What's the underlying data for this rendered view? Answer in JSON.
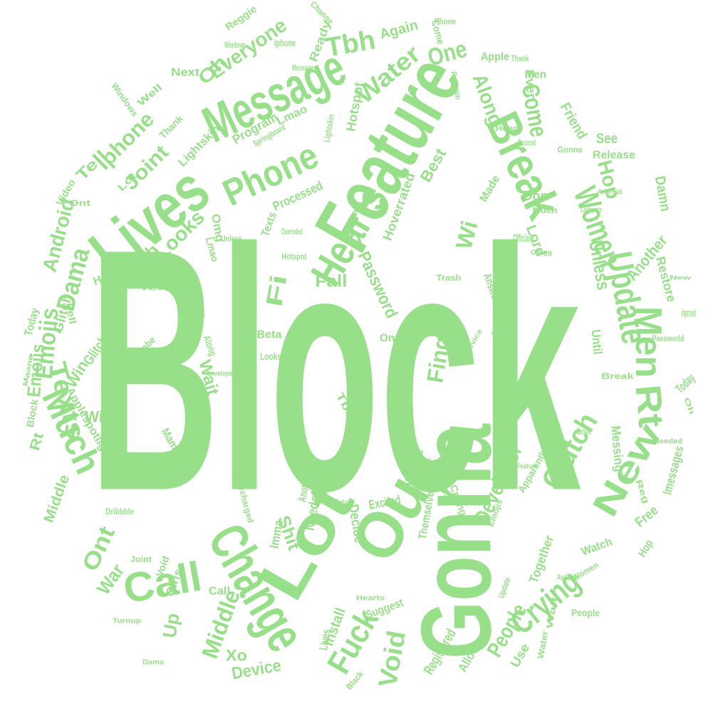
{
  "word_cloud": {
    "word_color": "#98df8a",
    "background_color": "#ffffff",
    "words": [
      "Block",
      "Gonna",
      "Feature",
      "Lot",
      "Out",
      "Lives",
      "Message",
      "Change",
      "Break",
      "Phone",
      "Hearts",
      "New",
      "Much",
      "Call",
      "Women",
      "Update",
      "Rt",
      "Men",
      "Crying",
      "Clutch",
      "Texts",
      "Emojis",
      "Dama",
      "Android",
      "Iphone",
      "Joint",
      "Tbh",
      "Water",
      "One",
      "Along",
      "Come",
      "Everyone",
      "Oh",
      "Hop",
      "Developer",
      "Fuck",
      "Void",
      "Finger",
      "People",
      "Looks",
      "Trash",
      "Brick",
      "Wi",
      "Fi",
      "Password",
      "Fall",
      "Middle",
      "Device",
      "Unless",
      "Another",
      "Restore",
      "Ont",
      "War",
      "Up",
      "Xo",
      "Wait",
      "Win",
      "Tell",
      "Glitch",
      "Next",
      "Well",
      "Windows",
      "Hotspot",
      "Program",
      "Lmao",
      "Lightskin",
      "Thank",
      "Processed",
      "Hoverrated",
      "Best",
      "Made",
      "Don",
      "Lord",
      "Damn",
      "Friend",
      "See",
      "Release",
      "Even",
      "Apple",
      "Again",
      "Ready",
      "Reggie",
      "Change",
      "Come",
      "Men",
      "Video",
      "Lot",
      "Omg",
      "Lmao",
      "Texts",
      "Here",
      "Fell",
      "Today",
      "Emojis",
      "Glitch",
      "Applespotlight",
      "Wi",
      "Rt",
      "Block",
      "Mama",
      "Finally",
      "Supercharged",
      "Girls",
      "Joint",
      "Void",
      "Imma",
      "Needed",
      "Decide",
      "Excited",
      "Available",
      "Shit",
      "Suggest",
      "Install",
      "Registered",
      "Allows",
      "Use",
      "Together",
      "Watch",
      "Free",
      "Hop",
      "Messing",
      "Imessages",
      "Reg",
      "Today",
      "Oh",
      "Improved",
      "Passworld",
      "New",
      "Until",
      "Apparently",
      "Find",
      "Shit",
      "Up",
      "Tbh",
      "Fi",
      "Another",
      "Themselves",
      "Emojis",
      "Finger",
      "Crying",
      "Answered",
      "Win",
      "War",
      "One",
      "Beta",
      "Looks",
      "Along",
      "Babe",
      "Fuck",
      "Brick",
      "Turnup",
      "Dama",
      "Black",
      "Lives",
      "Call",
      "Middle",
      "Dribbble",
      "People",
      "Water",
      "Update",
      "Available",
      "Women",
      "Break",
      "Everyone",
      "Needed",
      "Officially",
      "Wait",
      "Maana",
      "Hearts",
      "Device",
      "Springboard",
      "Developer",
      "Lightskin",
      "Program",
      "Message",
      "Windows",
      "Iphone",
      "Phone",
      "Heart",
      "Gonna",
      "Trash",
      "Much",
      "Tell",
      "Feature",
      "Ont",
      "Unless",
      "Hotspot",
      "Overrated",
      "Clutch",
      "Android",
      "Lashpotz",
      "Omgg",
      "Processed",
      "Thank",
      "Out",
      "Everyone",
      "Damn",
      "Best",
      "Ready",
      "Come"
    ]
  }
}
